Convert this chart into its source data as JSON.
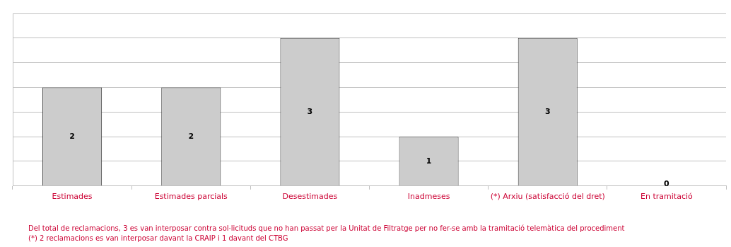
{
  "chart_data": {
    "type": "bar",
    "categories": [
      "Estimades",
      "Estimades parcials",
      "Desestimades",
      "Inadmeses",
      "(*) Arxiu (satisfacció del dret)",
      "En tramitació"
    ],
    "values": [
      2,
      2,
      3,
      1,
      3,
      0
    ],
    "color": "#cccccc",
    "ylim": [
      0,
      3.5
    ],
    "yticks": [
      {
        "value": 0,
        "label": null
      },
      {
        "value": 0.5,
        "label": null
      },
      {
        "value": 1,
        "label": null
      },
      {
        "value": 1.5,
        "label": null
      },
      {
        "value": 2,
        "label": null
      },
      {
        "value": 2.5,
        "label": null
      },
      {
        "value": 3,
        "label": null
      },
      {
        "value": 3.5,
        "label": null
      }
    ],
    "tick_labels": "x",
    "grid": "y",
    "legend": false,
    "data_labels": true,
    "annotations": [
      "Del total de reclamacions, 3 es van interposar contra sol·licituds que no han passat per la Unitat de Filtratge per no fer-se amb la tramitació telemàtica del procediment",
      "(*) 2 reclamacions es van interposar davant la CRAIP i 1 davant del CTBG"
    ]
  }
}
